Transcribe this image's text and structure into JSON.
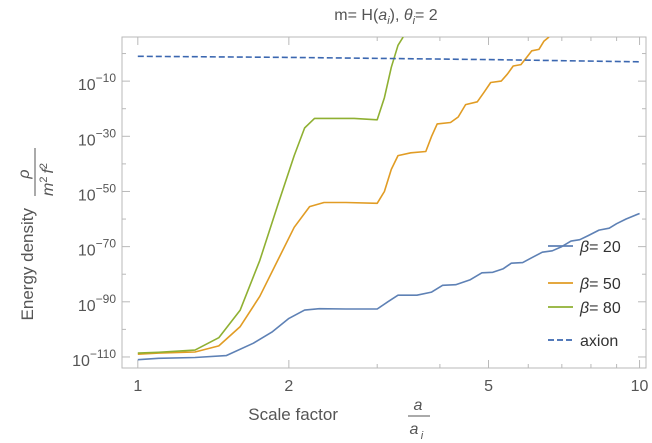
{
  "chart_data": {
    "type": "line",
    "title": {
      "prefix": "m= H(",
      "a_sym": "a",
      "sub_i": "i",
      "mid": "), ",
      "theta": "θ",
      "sub_i2": "i",
      "suffix": "= 2"
    },
    "xlabel": {
      "text": "Scale factor",
      "frac_num": "a",
      "frac_den": "a",
      "frac_den_sub": "i"
    },
    "ylabel": {
      "text": "Energy density",
      "frac_num": "ρ",
      "frac_den_m": "m",
      "frac_den_m_exp": "2",
      "frac_den_f": "f",
      "frac_den_f_exp": "2"
    },
    "x_scale": "log",
    "y_scale": "log",
    "xlim": [
      0.93,
      10.3
    ],
    "ylim_exponent": [
      -114,
      6
    ],
    "x_ticks": [
      {
        "value": 1,
        "label": "1"
      },
      {
        "value": 2,
        "label": "2"
      },
      {
        "value": 5,
        "label": "5"
      },
      {
        "value": 10,
        "label": "10"
      }
    ],
    "y_ticks": [
      {
        "exp": -10,
        "base": "10",
        "sup": "−10"
      },
      {
        "exp": -30,
        "base": "10",
        "sup": "−30"
      },
      {
        "exp": -50,
        "base": "10",
        "sup": "−50"
      },
      {
        "exp": -70,
        "base": "10",
        "sup": "−70"
      },
      {
        "exp": -90,
        "base": "10",
        "sup": "−90"
      },
      {
        "exp": -110,
        "base": "10",
        "sup": "−110"
      }
    ],
    "legend_position": "bottom-right",
    "grid": false,
    "series": [
      {
        "name": "β= 20",
        "label_sym": "β",
        "label_rest": "= 20",
        "color": "#5e81b5",
        "dash": "solid",
        "points": [
          [
            1.0,
            -111
          ],
          [
            1.1,
            -110.5
          ],
          [
            1.3,
            -110.2
          ],
          [
            1.5,
            -109.5
          ],
          [
            1.7,
            -105
          ],
          [
            1.85,
            -101
          ],
          [
            2.0,
            -96
          ],
          [
            2.15,
            -93
          ],
          [
            2.3,
            -92.5
          ],
          [
            2.6,
            -92.6
          ],
          [
            3.0,
            -92.6
          ],
          [
            3.15,
            -90
          ],
          [
            3.3,
            -87.6
          ],
          [
            3.6,
            -87.6
          ],
          [
            3.85,
            -86.5
          ],
          [
            4.05,
            -84
          ],
          [
            4.3,
            -83.8
          ],
          [
            4.6,
            -82
          ],
          [
            4.85,
            -79.5
          ],
          [
            5.1,
            -79.3
          ],
          [
            5.35,
            -78
          ],
          [
            5.55,
            -76
          ],
          [
            5.85,
            -75.8
          ],
          [
            6.1,
            -74
          ],
          [
            6.4,
            -72
          ],
          [
            6.7,
            -71.5
          ],
          [
            7.0,
            -70
          ],
          [
            7.3,
            -68
          ],
          [
            7.6,
            -67.5
          ],
          [
            7.9,
            -66
          ],
          [
            8.3,
            -64
          ],
          [
            8.7,
            -63.3
          ],
          [
            9.0,
            -61.7
          ],
          [
            9.4,
            -60
          ],
          [
            9.8,
            -58.6
          ],
          [
            10.0,
            -58
          ]
        ]
      },
      {
        "name": "β= 50",
        "label_sym": "β",
        "label_rest": "= 50",
        "color": "#e19c24",
        "dash": "solid",
        "points": [
          [
            1.0,
            -109
          ],
          [
            1.1,
            -108.6
          ],
          [
            1.3,
            -108.2
          ],
          [
            1.45,
            -106
          ],
          [
            1.6,
            -99
          ],
          [
            1.75,
            -88
          ],
          [
            1.9,
            -75
          ],
          [
            2.05,
            -63
          ],
          [
            2.2,
            -55.5
          ],
          [
            2.35,
            -54
          ],
          [
            2.6,
            -54
          ],
          [
            3.0,
            -54.3
          ],
          [
            3.1,
            -50
          ],
          [
            3.2,
            -42
          ],
          [
            3.3,
            -37
          ],
          [
            3.5,
            -36
          ],
          [
            3.75,
            -35.5
          ],
          [
            3.85,
            -30
          ],
          [
            3.95,
            -25.5
          ],
          [
            4.2,
            -25
          ],
          [
            4.35,
            -23
          ],
          [
            4.5,
            -18.5
          ],
          [
            4.75,
            -17.5
          ],
          [
            4.9,
            -14
          ],
          [
            5.05,
            -10.5
          ],
          [
            5.3,
            -10
          ],
          [
            5.45,
            -7.5
          ],
          [
            5.6,
            -4.5
          ],
          [
            5.8,
            -4
          ],
          [
            5.95,
            -1.5
          ],
          [
            6.1,
            1
          ],
          [
            6.3,
            1.5
          ],
          [
            6.45,
            4.5
          ],
          [
            6.6,
            6
          ]
        ]
      },
      {
        "name": "β= 80",
        "label_sym": "β",
        "label_rest": "= 80",
        "color": "#8fb032",
        "dash": "solid",
        "points": [
          [
            1.0,
            -108.6
          ],
          [
            1.1,
            -108.3
          ],
          [
            1.3,
            -107.5
          ],
          [
            1.45,
            -103
          ],
          [
            1.6,
            -93
          ],
          [
            1.75,
            -75
          ],
          [
            1.9,
            -55
          ],
          [
            2.05,
            -37
          ],
          [
            2.15,
            -27
          ],
          [
            2.25,
            -23.5
          ],
          [
            2.45,
            -23.5
          ],
          [
            2.7,
            -23.5
          ],
          [
            3.0,
            -24
          ],
          [
            3.1,
            -16
          ],
          [
            3.2,
            -5
          ],
          [
            3.3,
            3
          ],
          [
            3.38,
            6
          ]
        ]
      },
      {
        "name": "axion",
        "label_sym": "",
        "label_rest": "axion",
        "color": "#3b67b0",
        "dash": "dashed",
        "points": [
          [
            1.0,
            -1
          ],
          [
            2.0,
            -1.4
          ],
          [
            5.0,
            -2.2
          ],
          [
            10.0,
            -3
          ]
        ]
      }
    ]
  }
}
